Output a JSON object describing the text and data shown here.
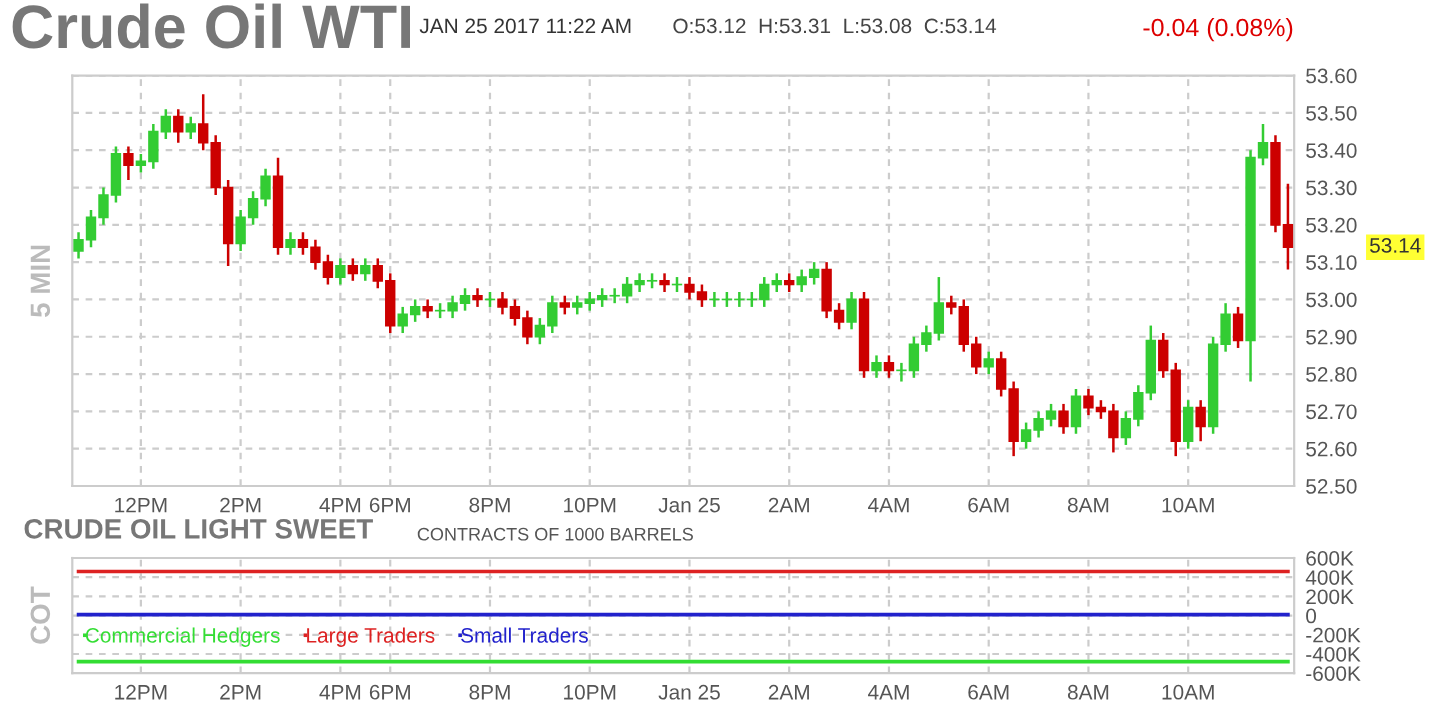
{
  "chart_data": [
    {
      "type": "candlestick",
      "title": "Crude Oil WTI",
      "subtitle": "JAN 25 2017 11:22 AM",
      "ylabel": "5 MIN",
      "annotations": [
        "O:53.12  H:53.31  L:53.08  C:53.14",
        "-0.04 (0.08%)",
        "53.14"
      ],
      "categories": [
        null,
        null,
        null,
        null,
        null,
        "12PM",
        null,
        null,
        null,
        null,
        null,
        null,
        null,
        "2PM",
        null,
        null,
        null,
        null,
        null,
        null,
        null,
        "4PM",
        null,
        null,
        null,
        "6PM",
        null,
        null,
        null,
        null,
        null,
        null,
        null,
        "8PM",
        null,
        null,
        null,
        null,
        null,
        null,
        null,
        "10PM",
        null,
        null,
        null,
        null,
        null,
        null,
        null,
        "Jan 25",
        null,
        null,
        null,
        null,
        null,
        null,
        null,
        "2AM",
        null,
        null,
        null,
        null,
        null,
        null,
        null,
        "4AM",
        null,
        null,
        null,
        null,
        null,
        null,
        null,
        "6AM",
        null,
        null,
        null,
        null,
        null,
        null,
        null,
        "8AM",
        null,
        null,
        null,
        null,
        null,
        null,
        null,
        "10AM",
        null,
        null,
        null,
        null,
        null,
        null,
        null,
        null
      ],
      "ohlc": [
        [
          53.13,
          53.18,
          53.11,
          53.16
        ],
        [
          53.16,
          53.24,
          53.14,
          53.22
        ],
        [
          53.22,
          53.3,
          53.2,
          53.28
        ],
        [
          53.28,
          53.41,
          53.26,
          53.39
        ],
        [
          53.39,
          53.41,
          53.32,
          53.36
        ],
        [
          53.36,
          53.39,
          53.34,
          53.37
        ],
        [
          53.37,
          53.47,
          53.35,
          53.45
        ],
        [
          53.45,
          53.51,
          53.43,
          53.49
        ],
        [
          53.49,
          53.51,
          53.42,
          53.45
        ],
        [
          53.45,
          53.49,
          53.43,
          53.47
        ],
        [
          53.47,
          53.55,
          53.4,
          53.42
        ],
        [
          53.42,
          53.44,
          53.28,
          53.3
        ],
        [
          53.3,
          53.32,
          53.09,
          53.15
        ],
        [
          53.15,
          53.24,
          53.13,
          53.22
        ],
        [
          53.22,
          53.29,
          53.2,
          53.27
        ],
        [
          53.27,
          53.35,
          53.25,
          53.33
        ],
        [
          53.33,
          53.38,
          53.12,
          53.14
        ],
        [
          53.14,
          53.18,
          53.12,
          53.16
        ],
        [
          53.16,
          53.18,
          53.12,
          53.14
        ],
        [
          53.14,
          53.16,
          53.08,
          53.1
        ],
        [
          53.1,
          53.12,
          53.04,
          53.06
        ],
        [
          53.06,
          53.11,
          53.04,
          53.09
        ],
        [
          53.09,
          53.11,
          53.05,
          53.07
        ],
        [
          53.07,
          53.11,
          53.05,
          53.09
        ],
        [
          53.09,
          53.11,
          53.03,
          53.05
        ],
        [
          53.05,
          53.07,
          52.91,
          52.93
        ],
        [
          52.93,
          52.98,
          52.91,
          52.96
        ],
        [
          52.96,
          53.0,
          52.94,
          52.98
        ],
        [
          52.98,
          53.0,
          52.95,
          52.97
        ],
        [
          52.97,
          52.99,
          52.95,
          52.97
        ],
        [
          52.97,
          53.01,
          52.95,
          52.99
        ],
        [
          52.99,
          53.03,
          52.97,
          53.01
        ],
        [
          53.01,
          53.03,
          52.98,
          53.0
        ],
        [
          53.0,
          53.02,
          52.98,
          53.0
        ],
        [
          53.0,
          53.02,
          52.96,
          52.98
        ],
        [
          52.98,
          53.0,
          52.93,
          52.95
        ],
        [
          52.95,
          52.97,
          52.88,
          52.9
        ],
        [
          52.9,
          52.95,
          52.88,
          52.93
        ],
        [
          52.93,
          53.01,
          52.91,
          52.99
        ],
        [
          52.99,
          53.01,
          52.96,
          52.98
        ],
        [
          52.98,
          53.01,
          52.96,
          52.99
        ],
        [
          52.99,
          53.02,
          52.97,
          53.0
        ],
        [
          53.0,
          53.03,
          52.98,
          53.01
        ],
        [
          53.01,
          53.03,
          52.99,
          53.01
        ],
        [
          53.01,
          53.06,
          52.99,
          53.04
        ],
        [
          53.04,
          53.07,
          53.02,
          53.05
        ],
        [
          53.05,
          53.07,
          53.03,
          53.05
        ],
        [
          53.05,
          53.07,
          53.02,
          53.04
        ],
        [
          53.04,
          53.06,
          53.02,
          53.04
        ],
        [
          53.04,
          53.06,
          53.0,
          53.02
        ],
        [
          53.02,
          53.04,
          52.98,
          53.0
        ],
        [
          53.0,
          53.02,
          52.98,
          53.0
        ],
        [
          53.0,
          53.02,
          52.98,
          53.0
        ],
        [
          53.0,
          53.02,
          52.98,
          53.0
        ],
        [
          53.0,
          53.02,
          52.98,
          53.0
        ],
        [
          53.0,
          53.06,
          52.98,
          53.04
        ],
        [
          53.04,
          53.07,
          53.02,
          53.05
        ],
        [
          53.05,
          53.07,
          53.02,
          53.04
        ],
        [
          53.04,
          53.08,
          53.02,
          53.06
        ],
        [
          53.06,
          53.1,
          53.04,
          53.08
        ],
        [
          53.08,
          53.1,
          52.95,
          52.97
        ],
        [
          52.97,
          52.99,
          52.92,
          52.94
        ],
        [
          52.94,
          53.02,
          52.92,
          53.0
        ],
        [
          53.0,
          53.02,
          52.79,
          52.81
        ],
        [
          52.81,
          52.85,
          52.79,
          52.83
        ],
        [
          52.83,
          52.85,
          52.79,
          52.81
        ],
        [
          52.81,
          52.83,
          52.78,
          52.81
        ],
        [
          52.81,
          52.9,
          52.79,
          52.88
        ],
        [
          52.88,
          52.93,
          52.86,
          52.91
        ],
        [
          52.91,
          53.06,
          52.89,
          52.99
        ],
        [
          52.99,
          53.01,
          52.96,
          52.98
        ],
        [
          52.98,
          53.0,
          52.86,
          52.88
        ],
        [
          52.88,
          52.9,
          52.8,
          52.82
        ],
        [
          52.82,
          52.86,
          52.8,
          52.84
        ],
        [
          52.84,
          52.86,
          52.74,
          52.76
        ],
        [
          52.76,
          52.78,
          52.58,
          52.62
        ],
        [
          52.62,
          52.67,
          52.6,
          52.65
        ],
        [
          52.65,
          52.7,
          52.63,
          52.68
        ],
        [
          52.68,
          52.72,
          52.66,
          52.7
        ],
        [
          52.7,
          52.72,
          52.64,
          52.66
        ],
        [
          52.66,
          52.76,
          52.64,
          52.74
        ],
        [
          52.74,
          52.76,
          52.69,
          52.71
        ],
        [
          52.71,
          52.73,
          52.68,
          52.7
        ],
        [
          52.7,
          52.72,
          52.59,
          52.63
        ],
        [
          52.63,
          52.7,
          52.61,
          52.68
        ],
        [
          52.68,
          52.77,
          52.66,
          52.75
        ],
        [
          52.75,
          52.93,
          52.73,
          52.89
        ],
        [
          52.89,
          52.91,
          52.79,
          52.81
        ],
        [
          52.81,
          52.83,
          52.58,
          52.62
        ],
        [
          52.62,
          52.73,
          52.6,
          52.71
        ],
        [
          52.71,
          52.73,
          52.62,
          52.66
        ],
        [
          52.66,
          52.9,
          52.64,
          52.88
        ],
        [
          52.88,
          52.99,
          52.86,
          52.96
        ],
        [
          52.96,
          52.98,
          52.87,
          52.89
        ],
        [
          52.89,
          53.4,
          52.78,
          53.38
        ],
        [
          53.38,
          53.47,
          53.36,
          53.42
        ],
        [
          53.42,
          53.44,
          53.18,
          53.2
        ],
        [
          53.2,
          53.31,
          53.08,
          53.14
        ]
      ],
      "colors": [
        "#33cc33",
        "#33cc33",
        "#33cc33",
        "#33cc33",
        "#cc0000",
        "#33cc33",
        "#33cc33",
        "#33cc33",
        "#cc0000",
        "#33cc33",
        "#cc0000",
        "#cc0000",
        "#cc0000",
        "#33cc33",
        "#33cc33",
        "#33cc33",
        "#cc0000",
        "#33cc33",
        "#cc0000",
        "#cc0000",
        "#cc0000",
        "#33cc33",
        "#cc0000",
        "#33cc33",
        "#cc0000",
        "#cc0000",
        "#33cc33",
        "#33cc33",
        "#cc0000",
        "#33cc33",
        "#33cc33",
        "#33cc33",
        "#cc0000",
        "#33cc33",
        "#cc0000",
        "#cc0000",
        "#cc0000",
        "#33cc33",
        "#33cc33",
        "#cc0000",
        "#33cc33",
        "#33cc33",
        "#33cc33",
        "#33cc33",
        "#33cc33",
        "#33cc33",
        "#33cc33",
        "#cc0000",
        "#33cc33",
        "#cc0000",
        "#cc0000",
        "#33cc33",
        "#33cc33",
        "#33cc33",
        "#33cc33",
        "#33cc33",
        "#33cc33",
        "#cc0000",
        "#33cc33",
        "#33cc33",
        "#cc0000",
        "#cc0000",
        "#33cc33",
        "#cc0000",
        "#33cc33",
        "#cc0000",
        "#33cc33",
        "#33cc33",
        "#33cc33",
        "#33cc33",
        "#cc0000",
        "#cc0000",
        "#cc0000",
        "#33cc33",
        "#cc0000",
        "#cc0000",
        "#33cc33",
        "#33cc33",
        "#33cc33",
        "#cc0000",
        "#33cc33",
        "#cc0000",
        "#cc0000",
        "#cc0000",
        "#33cc33",
        "#33cc33",
        "#33cc33",
        "#cc0000",
        "#cc0000",
        "#33cc33",
        "#cc0000",
        "#33cc33",
        "#33cc33",
        "#cc0000",
        "#33cc33",
        "#33cc33",
        "#cc0000",
        "#cc0000"
      ],
      "ylim": [
        52.5,
        53.6
      ],
      "yticks": [
        {
          "value": 52.5,
          "label": "52.50"
        },
        {
          "value": 52.6,
          "label": "52.60"
        },
        {
          "value": 52.7,
          "label": "52.70"
        },
        {
          "value": 52.8,
          "label": "52.80"
        },
        {
          "value": 52.9,
          "label": "52.90"
        },
        {
          "value": 53.0,
          "label": "53.00"
        },
        {
          "value": 53.1,
          "label": "53.10"
        },
        {
          "value": 53.2,
          "label": "53.20"
        },
        {
          "value": 53.3,
          "label": "53.30"
        },
        {
          "value": 53.4,
          "label": "53.40"
        },
        {
          "value": 53.5,
          "label": "53.50"
        },
        {
          "value": 53.6,
          "label": "53.60"
        }
      ],
      "grid": true
    },
    {
      "type": "line",
      "title": "CRUDE OIL LIGHT SWEET",
      "subtitle": "CONTRACTS OF 1000 BARRELS",
      "ylabel": "COT",
      "categories": [
        null,
        null,
        null,
        null,
        null,
        "12PM",
        null,
        null,
        null,
        null,
        null,
        null,
        null,
        "2PM",
        null,
        null,
        null,
        null,
        null,
        null,
        null,
        "4PM",
        null,
        null,
        null,
        "6PM",
        null,
        null,
        null,
        null,
        null,
        null,
        null,
        "8PM",
        null,
        null,
        null,
        null,
        null,
        null,
        null,
        "10PM",
        null,
        null,
        null,
        null,
        null,
        null,
        null,
        "Jan 25",
        null,
        null,
        null,
        null,
        null,
        null,
        null,
        "2AM",
        null,
        null,
        null,
        null,
        null,
        null,
        null,
        "4AM",
        null,
        null,
        null,
        null,
        null,
        null,
        null,
        "6AM",
        null,
        null,
        null,
        null,
        null,
        null,
        null,
        "8AM",
        null,
        null,
        null,
        null,
        null,
        null,
        null,
        "10AM",
        null,
        null,
        null,
        null,
        null,
        null,
        null,
        null
      ],
      "series": [
        {
          "name": "Commercial Hedgers",
          "color": "#33dd33",
          "values": [
            -480000,
            -480000,
            -480000,
            -480000,
            -480000,
            -480000,
            -480000,
            -480000,
            -480000,
            -480000,
            -480000,
            -480000,
            -480000,
            -480000,
            -480000,
            -480000,
            -480000,
            -480000,
            -480000,
            -480000,
            -480000,
            -480000,
            -480000,
            -480000,
            -480000,
            -480000,
            -480000,
            -480000,
            -480000,
            -480000,
            -480000,
            -480000,
            -480000,
            -480000,
            -480000,
            -480000,
            -480000,
            -480000,
            -480000,
            -480000,
            -480000,
            -480000,
            -480000,
            -480000,
            -480000,
            -480000,
            -480000,
            -480000,
            -480000,
            -480000,
            -480000,
            -480000,
            -480000,
            -480000,
            -480000,
            -480000,
            -480000,
            -480000,
            -480000,
            -480000,
            -480000,
            -480000,
            -480000,
            -480000,
            -480000,
            -480000,
            -480000,
            -480000,
            -480000,
            -480000,
            -480000,
            -480000,
            -480000,
            -480000,
            -480000,
            -480000,
            -480000,
            -480000,
            -480000,
            -480000,
            -480000,
            -480000,
            -480000,
            -480000,
            -480000,
            -480000,
            -480000,
            -480000,
            -480000,
            -480000,
            -480000,
            -480000,
            -480000,
            -480000,
            -480000,
            -480000,
            -480000,
            -480000
          ]
        },
        {
          "name": "Large Traders",
          "color": "#dd2222",
          "values": [
            460000,
            460000,
            460000,
            460000,
            460000,
            460000,
            460000,
            460000,
            460000,
            460000,
            460000,
            460000,
            460000,
            460000,
            460000,
            460000,
            460000,
            460000,
            460000,
            460000,
            460000,
            460000,
            460000,
            460000,
            460000,
            460000,
            460000,
            460000,
            460000,
            460000,
            460000,
            460000,
            460000,
            460000,
            460000,
            460000,
            460000,
            460000,
            460000,
            460000,
            460000,
            460000,
            460000,
            460000,
            460000,
            460000,
            460000,
            460000,
            460000,
            460000,
            460000,
            460000,
            460000,
            460000,
            460000,
            460000,
            460000,
            460000,
            460000,
            460000,
            460000,
            460000,
            460000,
            460000,
            460000,
            460000,
            460000,
            460000,
            460000,
            460000,
            460000,
            460000,
            460000,
            460000,
            460000,
            460000,
            460000,
            460000,
            460000,
            460000,
            460000,
            460000,
            460000,
            460000,
            460000,
            460000,
            460000,
            460000,
            460000,
            460000,
            460000,
            460000,
            460000,
            460000,
            460000,
            460000,
            460000,
            460000
          ]
        },
        {
          "name": "Small Traders",
          "color": "#2222cc",
          "values": [
            10000,
            10000,
            10000,
            10000,
            10000,
            10000,
            10000,
            10000,
            10000,
            10000,
            10000,
            10000,
            10000,
            10000,
            10000,
            10000,
            10000,
            10000,
            10000,
            10000,
            10000,
            10000,
            10000,
            10000,
            10000,
            10000,
            10000,
            10000,
            10000,
            10000,
            10000,
            10000,
            10000,
            10000,
            10000,
            10000,
            10000,
            10000,
            10000,
            10000,
            10000,
            10000,
            10000,
            10000,
            10000,
            10000,
            10000,
            10000,
            10000,
            10000,
            10000,
            10000,
            10000,
            10000,
            10000,
            10000,
            10000,
            10000,
            10000,
            10000,
            10000,
            10000,
            10000,
            10000,
            10000,
            10000,
            10000,
            10000,
            10000,
            10000,
            10000,
            10000,
            10000,
            10000,
            10000,
            10000,
            10000,
            10000,
            10000,
            10000,
            10000,
            10000,
            10000,
            10000,
            10000,
            10000,
            10000,
            10000,
            10000,
            10000,
            10000,
            10000,
            10000,
            10000,
            10000,
            10000,
            10000,
            10000
          ]
        }
      ],
      "ylim": [
        -600000,
        600000
      ],
      "yticks": [
        {
          "value": -600000,
          "label": "-600K"
        },
        {
          "value": -400000,
          "label": "-400K"
        },
        {
          "value": -200000,
          "label": "-200K"
        },
        0,
        {
          "value": 200000,
          "label": "200K"
        },
        {
          "value": 400000,
          "label": "400K"
        },
        {
          "value": 600000,
          "label": "600K"
        }
      ],
      "grid": true,
      "legend": "bottom left",
      "line_style": "solid",
      "marker": "none"
    }
  ]
}
